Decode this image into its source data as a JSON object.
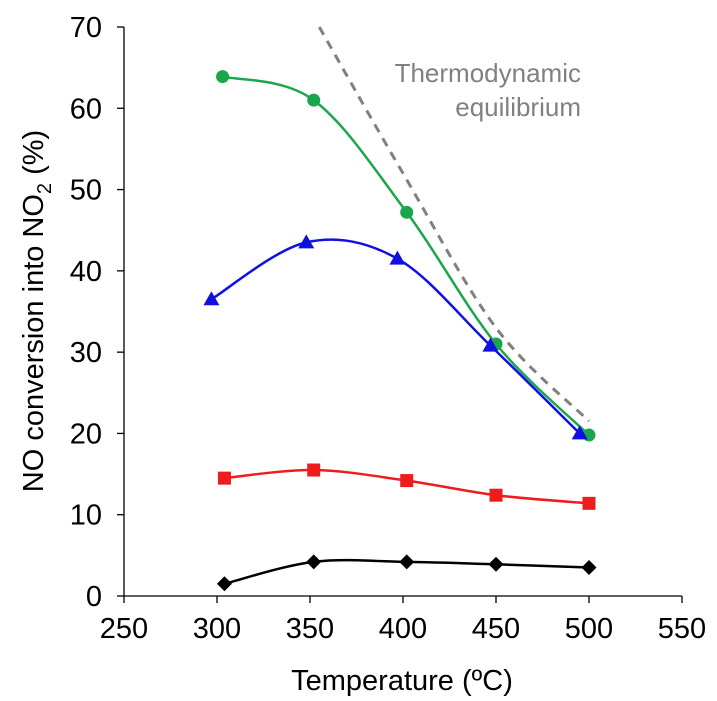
{
  "chart_data": {
    "type": "line",
    "xlabel": "Temperature (ºC)",
    "ylabel_main": "NO conversion into NO",
    "ylabel_sub": "2",
    "ylabel_tail": " (%)",
    "xlim": [
      250,
      550
    ],
    "ylim": [
      0,
      70
    ],
    "x_ticks": [
      250,
      300,
      350,
      400,
      450,
      500,
      550
    ],
    "y_ticks": [
      0,
      10,
      20,
      30,
      40,
      50,
      60,
      70
    ],
    "grid": false,
    "annotation": [
      "Thermodynamic",
      "equilibrium"
    ],
    "series": [
      {
        "marker": "circle",
        "color": "#1aa64a",
        "points": [
          [
            303,
            63.9
          ],
          [
            352,
            61.0
          ],
          [
            402,
            47.2
          ],
          [
            450,
            31.0
          ],
          [
            500,
            19.8
          ]
        ]
      },
      {
        "marker": "triangle",
        "color": "#1010e0",
        "points": [
          [
            297,
            36.5
          ],
          [
            348,
            43.5
          ],
          [
            397,
            41.5
          ],
          [
            447,
            30.8
          ],
          [
            495,
            20.0
          ]
        ]
      },
      {
        "marker": "square",
        "color": "#ee1c1c",
        "points": [
          [
            304,
            14.5
          ],
          [
            352,
            15.5
          ],
          [
            402,
            14.2
          ],
          [
            450,
            12.4
          ],
          [
            500,
            11.4
          ]
        ]
      },
      {
        "marker": "diamond",
        "color": "#000000",
        "points": [
          [
            304,
            1.5
          ],
          [
            352,
            4.2
          ],
          [
            402,
            4.2
          ],
          [
            450,
            3.9
          ],
          [
            500,
            3.5
          ]
        ]
      },
      {
        "marker": "none",
        "color": "#808080",
        "dashed": true,
        "points": [
          [
            355,
            70.0
          ],
          [
            400,
            52.0
          ],
          [
            450,
            33.0
          ],
          [
            500,
            21.5
          ]
        ]
      }
    ]
  }
}
